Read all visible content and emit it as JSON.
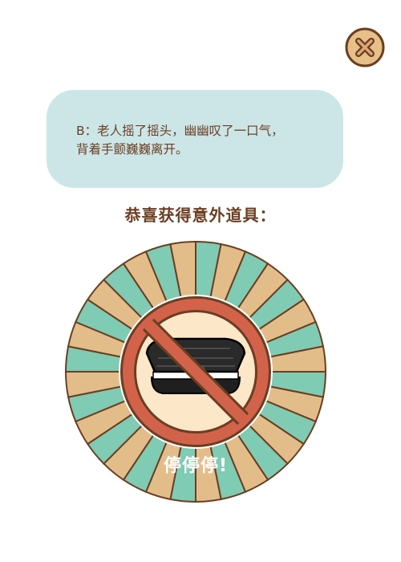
{
  "dialog": {
    "line1": "B：老人摇了摇头，幽幽叹了一口气，",
    "line2": "背着手颤巍巍离开。"
  },
  "reward": {
    "title": "恭喜获得意外道具：",
    "caption": "停停停!",
    "icon": "forbidden-hat-icon"
  },
  "close_button": {
    "icon": "close-icon"
  },
  "colors": {
    "brown": "#6b3e22",
    "dialog_bg": "#cce6e7",
    "ray_mint": "#7fcbb3",
    "ray_tan": "#e3bd89",
    "inner_disc": "#fde7c9",
    "prohibition_red": "#d2634a",
    "hat": "#1f1f1f"
  }
}
